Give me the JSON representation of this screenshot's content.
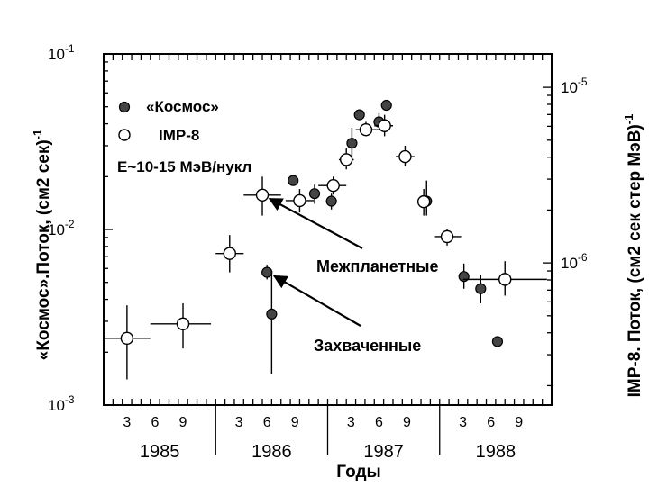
{
  "chart_data": {
    "type": "scatter",
    "xlabel": "Годы",
    "ylabel_left": "«Космос».Поток, (см2 сек)",
    "ylabel_left_sup": "-1",
    "ylabel_right": "IMP-8. Поток, (см2 сек стер МэВ)",
    "ylabel_right_sup": "-1",
    "x_unit": "months since Jan 1985",
    "xlim": [
      0,
      48
    ],
    "ylim_left": [
      0.001,
      0.1
    ],
    "ylim_right": [
      1.55e-07,
      1.55e-05
    ],
    "y_scale": "log",
    "left_ticks": [
      {
        "value": 0.1,
        "base": "10",
        "exp": "-1"
      },
      {
        "value": 0.01,
        "base": "10",
        "exp": "-2"
      },
      {
        "value": 0.001,
        "base": "10",
        "exp": "-3"
      }
    ],
    "right_ticks": [
      {
        "value": 1e-05,
        "base": "10",
        "exp": "-5"
      },
      {
        "value": 1e-06,
        "base": "10",
        "exp": "-6"
      }
    ],
    "years": [
      "1985",
      "1986",
      "1987",
      "1988"
    ],
    "month_ticks": [
      "3",
      "6",
      "9"
    ],
    "legend": [
      {
        "marker": "filled",
        "label": "«Космос»"
      },
      {
        "marker": "open",
        "label": "IMP-8"
      },
      {
        "marker": "none",
        "label": "E~10-15 МэВ/нукл"
      }
    ],
    "series": [
      {
        "name": "«Космос»",
        "marker": "filled",
        "axis": "left",
        "points": [
          {
            "x": 17.5,
            "y": 0.0057,
            "ylo": 0.0052,
            "yhi": 0.0063
          },
          {
            "x": 18.0,
            "y": 0.0033,
            "ylo": 0.0015,
            "yhi": 0.0058
          },
          {
            "x": 20.3,
            "y": 0.019,
            "ylo": 0.019,
            "yhi": 0.019
          },
          {
            "x": 22.6,
            "y": 0.016,
            "ylo": 0.014,
            "yhi": 0.018
          },
          {
            "x": 24.4,
            "y": 0.0145,
            "ylo": 0.013,
            "yhi": 0.016
          },
          {
            "x": 26.6,
            "y": 0.031,
            "ylo": 0.026,
            "yhi": 0.038
          },
          {
            "x": 27.4,
            "y": 0.045,
            "ylo": 0.042,
            "yhi": 0.048
          },
          {
            "x": 29.5,
            "y": 0.041,
            "ylo": 0.038,
            "yhi": 0.046
          },
          {
            "x": 30.3,
            "y": 0.051,
            "ylo": 0.048,
            "yhi": 0.054
          },
          {
            "x": 34.6,
            "y": 0.0145,
            "ylo": 0.012,
            "yhi": 0.019
          },
          {
            "x": 38.6,
            "y": 0.0054,
            "ylo": 0.0046,
            "yhi": 0.0064
          },
          {
            "x": 40.4,
            "y": 0.0046,
            "ylo": 0.0038,
            "yhi": 0.0055
          },
          {
            "x": 42.2,
            "y": 0.0023,
            "ylo": 0.0023,
            "yhi": 0.0023
          }
        ]
      },
      {
        "name": "IMP-8",
        "marker": "open",
        "axis": "left",
        "points": [
          {
            "x": 2.5,
            "y": 0.0024,
            "xlo": 0.0,
            "xhi": 5.0,
            "ylo": 0.0014,
            "yhi": 0.0037
          },
          {
            "x": 8.5,
            "y": 0.0029,
            "xlo": 5.0,
            "xhi": 11.5,
            "ylo": 0.0021,
            "yhi": 0.0038
          },
          {
            "x": 13.5,
            "y": 0.0073,
            "xlo": 12.0,
            "xhi": 15.0,
            "ylo": 0.0057,
            "yhi": 0.0093
          },
          {
            "x": 17.0,
            "y": 0.0157,
            "xlo": 15.0,
            "xhi": 19.0,
            "ylo": 0.012,
            "yhi": 0.02
          },
          {
            "x": 21.0,
            "y": 0.0146,
            "xlo": 19.5,
            "xhi": 22.5,
            "ylo": 0.0125,
            "yhi": 0.017
          },
          {
            "x": 24.6,
            "y": 0.0178,
            "xlo": 23.0,
            "xhi": 26.0,
            "ylo": 0.0158,
            "yhi": 0.02
          },
          {
            "x": 26.0,
            "y": 0.025,
            "xlo": 25.2,
            "xhi": 26.8,
            "ylo": 0.022,
            "yhi": 0.029
          },
          {
            "x": 28.1,
            "y": 0.037,
            "xlo": 27.0,
            "xhi": 29.5,
            "ylo": 0.034,
            "yhi": 0.041
          },
          {
            "x": 30.1,
            "y": 0.039,
            "xlo": 29.0,
            "xhi": 31.0,
            "ylo": 0.034,
            "yhi": 0.045
          },
          {
            "x": 32.3,
            "y": 0.026,
            "xlo": 31.3,
            "xhi": 33.3,
            "ylo": 0.023,
            "yhi": 0.03
          },
          {
            "x": 34.3,
            "y": 0.0144,
            "xlo": 33.8,
            "xhi": 35.0,
            "ylo": 0.012,
            "yhi": 0.017
          },
          {
            "x": 36.8,
            "y": 0.0091,
            "xlo": 35.5,
            "xhi": 38.3,
            "ylo": 0.0081,
            "yhi": 0.01
          },
          {
            "x": 43.0,
            "y": 0.0052,
            "xlo": 38.5,
            "xhi": 47.5,
            "ylo": 0.0042,
            "yhi": 0.0066
          }
        ]
      }
    ],
    "annotations": [
      {
        "text": "Межпланетные",
        "target_series": "IMP-8",
        "target_x": 17.0,
        "target_y": 0.0157
      },
      {
        "text": "Захваченные",
        "target_series": "«Космос»",
        "target_x": 17.5,
        "target_y": 0.0057
      }
    ]
  }
}
